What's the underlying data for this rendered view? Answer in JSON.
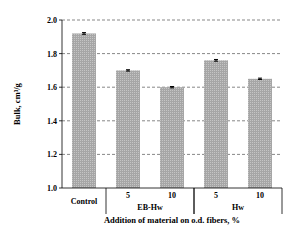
{
  "chart_data": {
    "type": "bar",
    "categories": [
      "Control",
      "5",
      "10",
      "5",
      "10"
    ],
    "values": [
      1.92,
      1.7,
      1.6,
      1.76,
      1.65
    ],
    "errors": [
      0.005,
      0.004,
      0.004,
      0.005,
      0.004
    ],
    "groups": [
      {
        "label": "EB-Hw",
        "from": 1,
        "to": 2
      },
      {
        "label": "Hw",
        "from": 3,
        "to": 4
      }
    ],
    "color": "#a6a6a6",
    "x_label": "Addition of material on o.d. fibers, %",
    "y_label": "Bulk, cm³/g",
    "ylim": [
      1.0,
      2.0
    ],
    "yticks": [
      {
        "value": 1.0,
        "label": "1.0"
      },
      1.2,
      1.4,
      1.6,
      1.8,
      {
        "value": 2.0,
        "label": "2.0"
      }
    ],
    "grid": true
  }
}
